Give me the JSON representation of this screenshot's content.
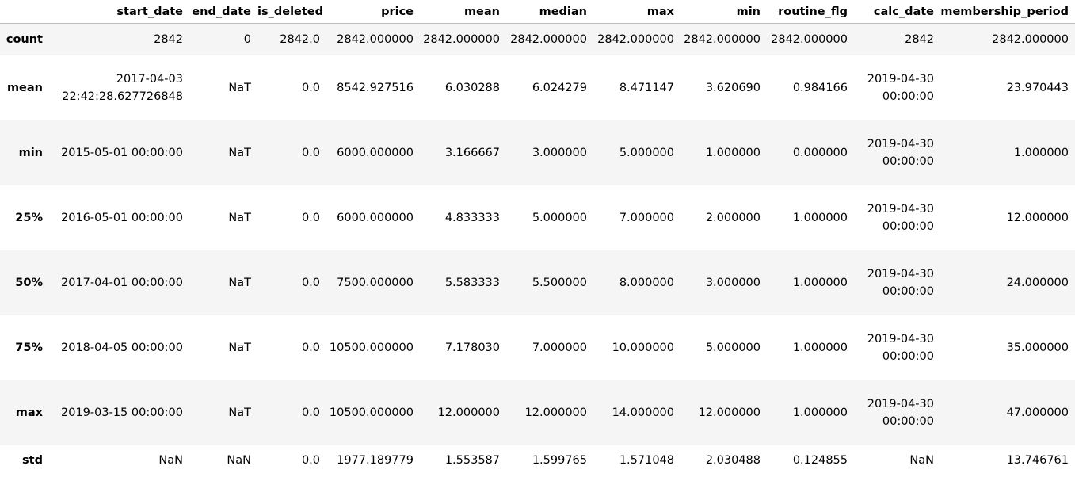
{
  "columns": [
    "",
    "start_date",
    "end_date",
    "is_deleted",
    "price",
    "mean",
    "median",
    "max",
    "min",
    "routine_flg",
    "calc_date",
    "membership_period"
  ],
  "rows": [
    {
      "label": "count",
      "cells": [
        "2842",
        "0",
        "2842.0",
        "2842.000000",
        "2842.000000",
        "2842.000000",
        "2842.000000",
        "2842.000000",
        "2842.000000",
        "2842",
        "2842.000000"
      ]
    },
    {
      "label": "mean",
      "cells": [
        "2017-04-03 22:42:28.627726848",
        "NaT",
        "0.0",
        "8542.927516",
        "6.030288",
        "6.024279",
        "8.471147",
        "3.620690",
        "0.984166",
        "2019-04-30 00:00:00",
        "23.970443"
      ]
    },
    {
      "label": "min",
      "cells": [
        "2015-05-01 00:00:00",
        "NaT",
        "0.0",
        "6000.000000",
        "3.166667",
        "3.000000",
        "5.000000",
        "1.000000",
        "0.000000",
        "2019-04-30 00:00:00",
        "1.000000"
      ]
    },
    {
      "label": "25%",
      "cells": [
        "2016-05-01 00:00:00",
        "NaT",
        "0.0",
        "6000.000000",
        "4.833333",
        "5.000000",
        "7.000000",
        "2.000000",
        "1.000000",
        "2019-04-30 00:00:00",
        "12.000000"
      ]
    },
    {
      "label": "50%",
      "cells": [
        "2017-04-01 00:00:00",
        "NaT",
        "0.0",
        "7500.000000",
        "5.583333",
        "5.500000",
        "8.000000",
        "3.000000",
        "1.000000",
        "2019-04-30 00:00:00",
        "24.000000"
      ]
    },
    {
      "label": "75%",
      "cells": [
        "2018-04-05 00:00:00",
        "NaT",
        "0.0",
        "10500.000000",
        "7.178030",
        "7.000000",
        "10.000000",
        "5.000000",
        "1.000000",
        "2019-04-30 00:00:00",
        "35.000000"
      ]
    },
    {
      "label": "max",
      "cells": [
        "2019-03-15 00:00:00",
        "NaT",
        "0.0",
        "10500.000000",
        "12.000000",
        "12.000000",
        "14.000000",
        "12.000000",
        "1.000000",
        "2019-04-30 00:00:00",
        "47.000000"
      ]
    },
    {
      "label": "std",
      "cells": [
        "NaN",
        "NaN",
        "0.0",
        "1977.189779",
        "1.553587",
        "1.599765",
        "1.571048",
        "2.030488",
        "0.124855",
        "NaN",
        "13.746761"
      ]
    }
  ]
}
